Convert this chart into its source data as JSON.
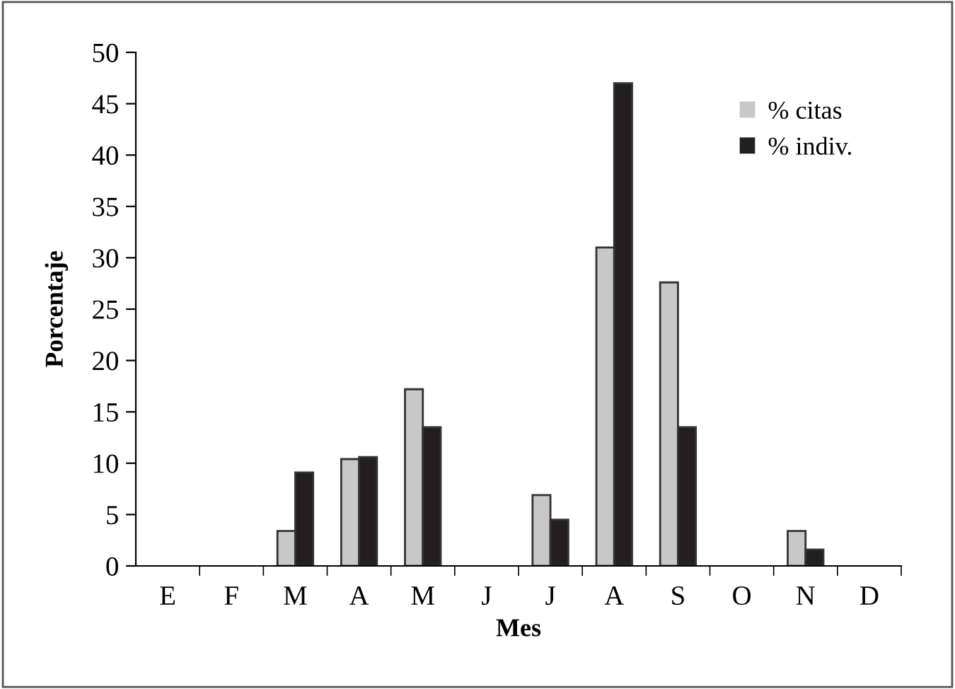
{
  "chart_data": {
    "type": "bar",
    "xlabel": "Mes",
    "ylabel": "Porcentaje",
    "categories": [
      "E",
      "F",
      "M",
      "A",
      "M",
      "J",
      "J",
      "A",
      "S",
      "O",
      "N",
      "D"
    ],
    "series": [
      {
        "name": "% citas",
        "color": "#c8c8c8",
        "values": [
          0,
          0,
          3.4,
          10.4,
          17.2,
          0,
          6.9,
          31,
          27.6,
          0,
          3.4,
          0
        ]
      },
      {
        "name": "% indiv.",
        "color": "#231f20",
        "values": [
          0,
          0,
          9.1,
          10.6,
          13.5,
          0,
          4.5,
          47,
          13.5,
          0,
          1.6,
          0
        ]
      }
    ],
    "ylim": [
      0,
      50
    ],
    "yticks": [
      0,
      5,
      10,
      15,
      20,
      25,
      30,
      35,
      40,
      45,
      50
    ],
    "grid": false,
    "legend": "top right"
  }
}
